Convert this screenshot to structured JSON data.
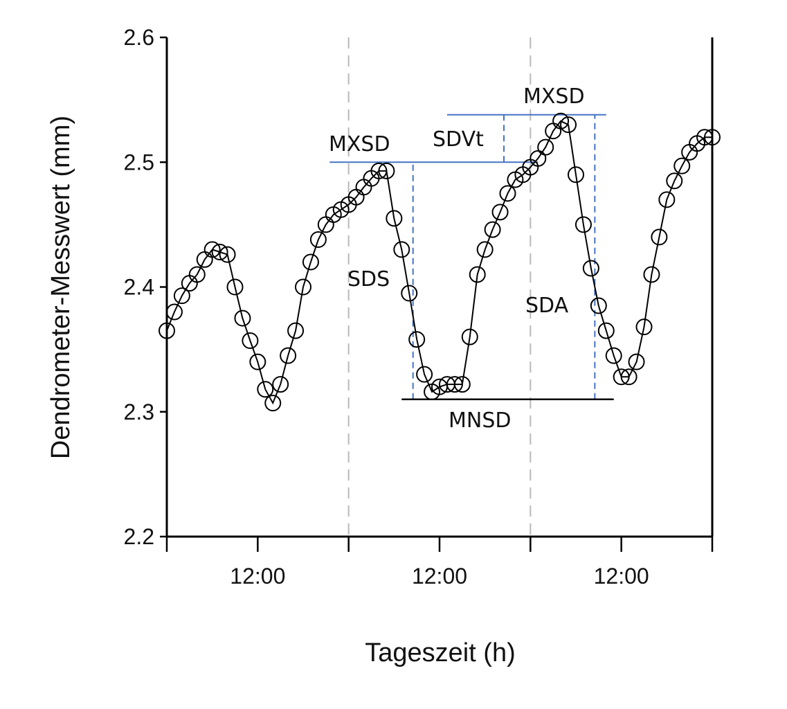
{
  "chart_data": {
    "type": "scatter",
    "xlabel": "Tageszeit (h)",
    "ylabel": "Dendrometer-Messwert (mm)",
    "ylim": [
      2.2,
      2.6
    ],
    "yticks": [
      "2.2",
      "2.3",
      "2.4",
      "2.5",
      "2.6"
    ],
    "xlim": [
      0,
      72
    ],
    "xtick_hours": [
      0,
      12,
      24,
      36,
      48,
      60,
      72
    ],
    "xtick_labels": [
      {
        "hour": 12,
        "label": "12:00"
      },
      {
        "hour": 36,
        "label": "12:00"
      },
      {
        "hour": 60,
        "label": "12:00"
      }
    ],
    "day_boundaries": [
      24,
      48
    ],
    "series": [
      {
        "name": "Dendrometer",
        "marker": "open-circle",
        "x": [
          0,
          1,
          2,
          3,
          4,
          5,
          6,
          7,
          8,
          9,
          10,
          11,
          12,
          13,
          14,
          15,
          16,
          17,
          18,
          19,
          20,
          21,
          22,
          23,
          24,
          25,
          26,
          27,
          28,
          29,
          30,
          31,
          32,
          33,
          34,
          35,
          36,
          37,
          38,
          39,
          40,
          41,
          42,
          43,
          44,
          45,
          46,
          47,
          48,
          49,
          50,
          51,
          52,
          53,
          54,
          55,
          56,
          57,
          58,
          59,
          60,
          61,
          62,
          63,
          64,
          65,
          66,
          67,
          68,
          69,
          70,
          71,
          72
        ],
        "values": [
          2.365,
          2.38,
          2.393,
          2.403,
          2.41,
          2.422,
          2.43,
          2.428,
          2.426,
          2.4,
          2.375,
          2.357,
          2.34,
          2.318,
          2.307,
          2.322,
          2.345,
          2.365,
          2.4,
          2.42,
          2.438,
          2.45,
          2.458,
          2.462,
          2.466,
          2.472,
          2.48,
          2.487,
          2.493,
          2.493,
          2.455,
          2.43,
          2.395,
          2.358,
          2.33,
          2.316,
          2.32,
          2.322,
          2.322,
          2.322,
          2.36,
          2.41,
          2.43,
          2.446,
          2.46,
          2.475,
          2.486,
          2.49,
          2.496,
          2.503,
          2.512,
          2.525,
          2.533,
          2.53,
          2.49,
          2.45,
          2.415,
          2.385,
          2.365,
          2.345,
          2.328,
          2.328,
          2.34,
          2.368,
          2.41,
          2.44,
          2.47,
          2.485,
          2.497,
          2.508,
          2.515,
          2.52,
          2.52
        ]
      }
    ],
    "annotations": [
      {
        "label": "MXSD",
        "kind": "horizontal-line",
        "color": "#4472c4",
        "y": 2.5,
        "x_from": 21.5,
        "x_to": 49
      },
      {
        "label": "MXSD",
        "kind": "horizontal-line",
        "color": "#4472c4",
        "y": 2.538,
        "x_from": 37,
        "x_to": 58
      },
      {
        "label": "SDVt",
        "kind": "vertical-dashed",
        "color": "#4472c4",
        "x": 44.5,
        "y_from": 2.5,
        "y_to": 2.538
      },
      {
        "label": "SDS",
        "kind": "vertical-dashed",
        "color": "#4472c4",
        "x": 32.5,
        "y_from": 2.31,
        "y_to": 2.5
      },
      {
        "label": "SDA",
        "kind": "vertical-dashed",
        "color": "#4472c4",
        "x": 56.5,
        "y_from": 2.31,
        "y_to": 2.538
      },
      {
        "label": "MNSD",
        "kind": "horizontal-line",
        "color": "#000000",
        "y": 2.31,
        "x_from": 31,
        "x_to": 59
      }
    ]
  }
}
